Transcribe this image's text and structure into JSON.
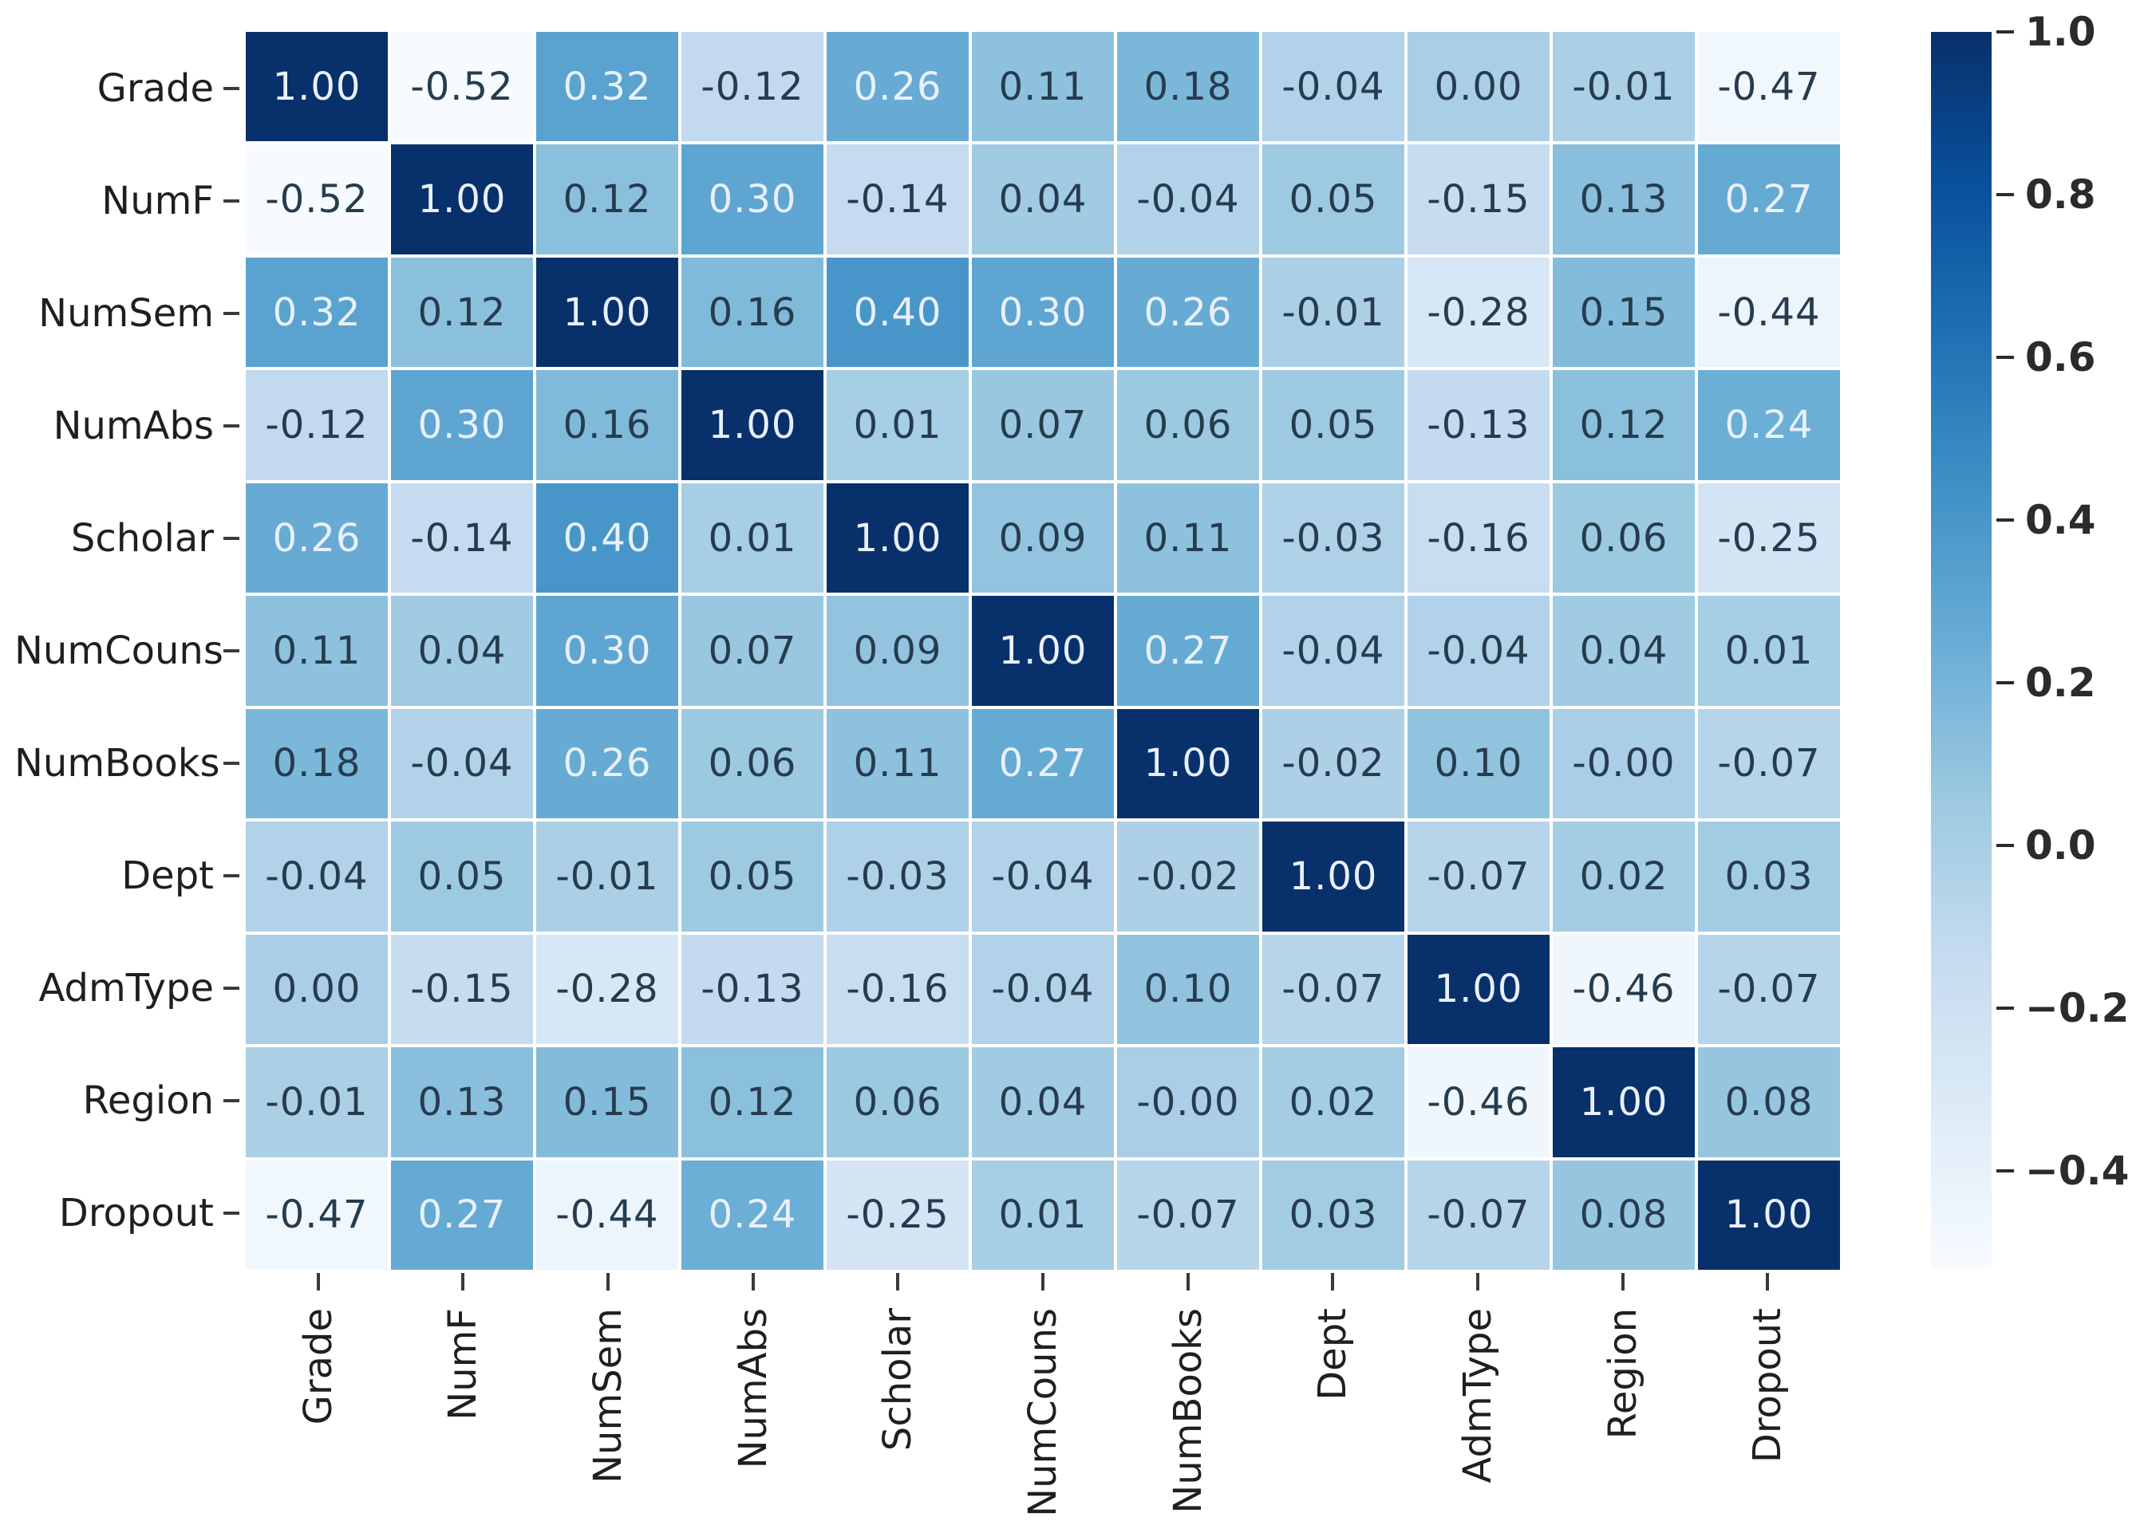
{
  "chart_data": {
    "type": "heatmap",
    "title": "",
    "categories": [
      "Grade",
      "NumF",
      "NumSem",
      "NumAbs",
      "Scholar",
      "NumCouns",
      "NumBooks",
      "Dept",
      "AdmType",
      "Region",
      "Dropout"
    ],
    "matrix": [
      [
        "1.00",
        "-0.52",
        "0.32",
        "-0.12",
        "0.26",
        "0.11",
        "0.18",
        "-0.04",
        "0.00",
        "-0.01",
        "-0.47"
      ],
      [
        "-0.52",
        "1.00",
        "0.12",
        "0.30",
        "-0.14",
        "0.04",
        "-0.04",
        "0.05",
        "-0.15",
        "0.13",
        "0.27"
      ],
      [
        "0.32",
        "0.12",
        "1.00",
        "0.16",
        "0.40",
        "0.30",
        "0.26",
        "-0.01",
        "-0.28",
        "0.15",
        "-0.44"
      ],
      [
        "-0.12",
        "0.30",
        "0.16",
        "1.00",
        "0.01",
        "0.07",
        "0.06",
        "0.05",
        "-0.13",
        "0.12",
        "0.24"
      ],
      [
        "0.26",
        "-0.14",
        "0.40",
        "0.01",
        "1.00",
        "0.09",
        "0.11",
        "-0.03",
        "-0.16",
        "0.06",
        "-0.25"
      ],
      [
        "0.11",
        "0.04",
        "0.30",
        "0.07",
        "0.09",
        "1.00",
        "0.27",
        "-0.04",
        "-0.04",
        "0.04",
        "0.01"
      ],
      [
        "0.18",
        "-0.04",
        "0.26",
        "0.06",
        "0.11",
        "0.27",
        "1.00",
        "-0.02",
        "0.10",
        "-0.00",
        "-0.07"
      ],
      [
        "-0.04",
        "0.05",
        "-0.01",
        "0.05",
        "-0.03",
        "-0.04",
        "-0.02",
        "1.00",
        "-0.07",
        "0.02",
        "0.03"
      ],
      [
        "0.00",
        "-0.15",
        "-0.28",
        "-0.13",
        "-0.16",
        "-0.04",
        "0.10",
        "-0.07",
        "1.00",
        "-0.46",
        "-0.07"
      ],
      [
        "-0.01",
        "0.13",
        "0.15",
        "0.12",
        "0.06",
        "0.04",
        "-0.00",
        "0.02",
        "-0.46",
        "1.00",
        "0.08"
      ],
      [
        "-0.47",
        "0.27",
        "-0.44",
        "0.24",
        "-0.25",
        "0.01",
        "-0.07",
        "0.03",
        "-0.07",
        "0.08",
        "1.00"
      ]
    ],
    "vmin": -0.52,
    "vmax": 1.0,
    "colormap_name": "Blues",
    "colormap_stops": [
      "#f7fbff",
      "#deebf7",
      "#c6dbef",
      "#9ecae1",
      "#6baed6",
      "#4292c6",
      "#2171b5",
      "#08519c",
      "#08306b"
    ],
    "colorbar_ticks": [
      "1.0",
      "0.8",
      "0.6",
      "0.4",
      "0.2",
      "0.0",
      "−0.2",
      "−0.4"
    ],
    "annotation_color_dark": "#263c4e",
    "annotation_color_light": "#e8f0fa",
    "grid_color": "#ffffff",
    "legend_position": "right",
    "grid": false
  }
}
